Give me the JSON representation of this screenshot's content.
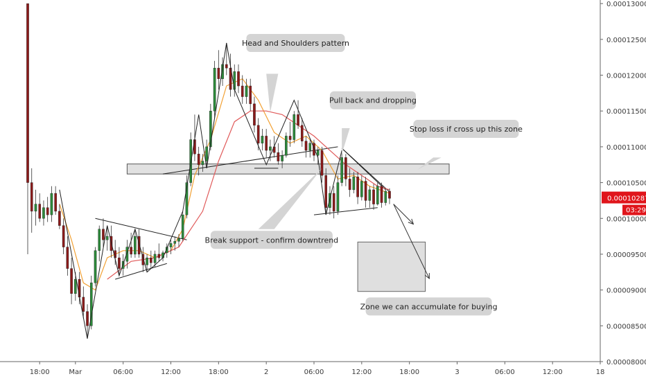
{
  "chart_data": {
    "type": "candlestick",
    "ylim": [
      8e-05,
      0.0001305
    ],
    "xlim": [
      -2,
      144
    ],
    "x_ticks": [
      {
        "label": "18:00",
        "x": 3
      },
      {
        "label": "Mar",
        "x": 12
      },
      {
        "label": "06:00",
        "x": 24
      },
      {
        "label": "12:00",
        "x": 36
      },
      {
        "label": "18:00",
        "x": 48
      },
      {
        "label": "2",
        "x": 60
      },
      {
        "label": "06:00",
        "x": 72
      },
      {
        "label": "12:00",
        "x": 84
      },
      {
        "label": "18:00",
        "x": 96
      },
      {
        "label": "3",
        "x": 108
      },
      {
        "label": "06:00",
        "x": 120
      },
      {
        "label": "12:00",
        "x": 132
      },
      {
        "label": "18",
        "x": 144
      }
    ],
    "y_ticks": [
      "0.00013000",
      "0.00012500",
      "0.00012000",
      "0.00011500",
      "0.00011000",
      "0.00010500",
      "0.00010000",
      "0.00009500",
      "0.00009000",
      "0.00008500",
      "0.00008000"
    ],
    "y_tick_values": [
      0.00013,
      0.000125,
      0.00012,
      0.000115,
      0.00011,
      0.000105,
      0.0001,
      9.5e-05,
      9e-05,
      8.5e-05,
      8e-05
    ],
    "candles": [
      [
        0,
        0.00013,
        0.00013,
        9.5e-05,
        0.000105
      ],
      [
        1,
        0.000105,
        0.000107,
        9.8e-05,
        0.000101
      ],
      [
        2,
        0.000101,
        0.000104,
        9.9e-05,
        0.000102
      ],
      [
        3,
        0.000102,
        0.0001035,
        9.95e-05,
        0.0001
      ],
      [
        4,
        0.0001,
        0.0001025,
        9.9e-05,
        0.0001015
      ],
      [
        5,
        0.0001015,
        0.000103,
        9.95e-05,
        0.0001005
      ],
      [
        6,
        0.0001005,
        0.0001045,
        9.95e-05,
        0.0001035
      ],
      [
        7,
        0.0001035,
        0.0001045,
        0.0001005,
        0.000101
      ],
      [
        8,
        0.000101,
        0.000102,
        9.85e-05,
        9.9e-05
      ],
      [
        9,
        9.9e-05,
        0.0001,
        9.5e-05,
        9.6e-05
      ],
      [
        10,
        9.6e-05,
        9.75e-05,
        9.2e-05,
        9.3e-05
      ],
      [
        11,
        9.3e-05,
        9.45e-05,
        8.8e-05,
        8.95e-05
      ],
      [
        12,
        8.95e-05,
        9.25e-05,
        8.85e-05,
        9.15e-05
      ],
      [
        13,
        9.15e-05,
        9.25e-05,
        8.8e-05,
        8.9e-05
      ],
      [
        14,
        8.9e-05,
        9.05e-05,
        8.6e-05,
        8.7e-05
      ],
      [
        15,
        8.7e-05,
        8.8e-05,
        8.32e-05,
        8.5e-05
      ],
      [
        16,
        8.5e-05,
        9.2e-05,
        8.45e-05,
        9.1e-05
      ],
      [
        17,
        9.1e-05,
        9.6e-05,
        9.05e-05,
        9.55e-05
      ],
      [
        18,
        9.55e-05,
        9.9e-05,
        9.4e-05,
        9.85e-05
      ],
      [
        19,
        9.85e-05,
        0.0001,
        9.6e-05,
        9.7e-05
      ],
      [
        20,
        9.7e-05,
        9.9e-05,
        9.55e-05,
        9.75e-05
      ],
      [
        21,
        9.75e-05,
        9.9e-05,
        9.45e-05,
        9.55e-05
      ],
      [
        22,
        9.55e-05,
        9.7e-05,
        9.35e-05,
        9.45e-05
      ],
      [
        23,
        9.45e-05,
        9.6e-05,
        9.2e-05,
        9.3e-05
      ],
      [
        24,
        9.3e-05,
        9.5e-05,
        9.2e-05,
        9.4e-05
      ],
      [
        25,
        9.4e-05,
        9.7e-05,
        9.3e-05,
        9.6e-05
      ],
      [
        26,
        9.6e-05,
        9.8e-05,
        9.45e-05,
        9.5e-05
      ],
      [
        27,
        9.5e-05,
        9.85e-05,
        9.45e-05,
        9.75e-05
      ],
      [
        28,
        9.75e-05,
        9.85e-05,
        9.45e-05,
        9.5e-05
      ],
      [
        29,
        9.5e-05,
        9.6e-05,
        9.25e-05,
        9.35e-05
      ],
      [
        30,
        9.35e-05,
        9.5e-05,
        9.25e-05,
        9.45e-05
      ],
      [
        31,
        9.45e-05,
        9.55e-05,
        9.3e-05,
        9.38e-05
      ],
      [
        32,
        9.38e-05,
        9.55e-05,
        9.32e-05,
        9.5e-05
      ],
      [
        33,
        9.5e-05,
        9.65e-05,
        9.4e-05,
        9.45e-05
      ],
      [
        34,
        9.45e-05,
        9.55e-05,
        9.4e-05,
        9.52e-05
      ],
      [
        35,
        9.52e-05,
        9.65e-05,
        9.45e-05,
        9.6e-05
      ],
      [
        36,
        9.6e-05,
        9.7e-05,
        9.5e-05,
        9.65e-05
      ],
      [
        37,
        9.65e-05,
        9.75e-05,
        9.55e-05,
        9.68e-05
      ],
      [
        38,
        9.68e-05,
        9.78e-05,
        9.6e-05,
        9.72e-05
      ],
      [
        39,
        9.72e-05,
        0.000101,
        9.68e-05,
        0.0001005
      ],
      [
        40,
        0.0001005,
        0.000106,
        0.0001,
        0.000105
      ],
      [
        41,
        0.000105,
        0.000112,
        0.0001045,
        0.000111
      ],
      [
        42,
        0.000111,
        0.0001145,
        0.000108,
        0.000109
      ],
      [
        43,
        0.000109,
        0.00011,
        0.000106,
        0.0001075
      ],
      [
        44,
        0.0001075,
        0.000109,
        0.0001065,
        0.000108
      ],
      [
        45,
        0.000108,
        0.000111,
        0.0001075,
        0.00011
      ],
      [
        46,
        0.00011,
        0.000116,
        0.0001095,
        0.000115
      ],
      [
        47,
        0.000115,
        0.000122,
        0.000114,
        0.000121
      ],
      [
        48,
        0.000121,
        0.0001235,
        0.000118,
        0.0001195
      ],
      [
        49,
        0.0001195,
        0.0001225,
        0.0001185,
        0.0001215
      ],
      [
        50,
        0.0001215,
        0.0001245,
        0.00012,
        0.000121
      ],
      [
        51,
        0.000121,
        0.000123,
        0.000117,
        0.000118
      ],
      [
        52,
        0.000118,
        0.0001215,
        0.000117,
        0.0001205
      ],
      [
        53,
        0.0001205,
        0.0001215,
        0.0001175,
        0.0001185
      ],
      [
        54,
        0.0001185,
        0.00012,
        0.000116,
        0.000117
      ],
      [
        55,
        0.000117,
        0.0001195,
        0.000116,
        0.0001185
      ],
      [
        56,
        0.0001185,
        0.0001195,
        0.000115,
        0.000116
      ],
      [
        57,
        0.000116,
        0.000117,
        0.000112,
        0.000113
      ],
      [
        58,
        0.000113,
        0.000114,
        0.0001095,
        0.0001105
      ],
      [
        59,
        0.0001105,
        0.0001125,
        0.0001095,
        0.0001115
      ],
      [
        60,
        0.0001115,
        0.0001125,
        0.0001085,
        0.0001095
      ],
      [
        61,
        0.0001095,
        0.000111,
        0.000108,
        0.00011
      ],
      [
        62,
        0.00011,
        0.0001115,
        0.0001085,
        0.0001092
      ],
      [
        63,
        0.0001092,
        0.0001105,
        0.0001075,
        0.000108
      ],
      [
        64,
        0.000108,
        0.0001095,
        0.000107,
        0.0001088
      ],
      [
        65,
        0.0001088,
        0.000112,
        0.0001085,
        0.0001115
      ],
      [
        66,
        0.0001115,
        0.0001135,
        0.00011,
        0.000111
      ],
      [
        67,
        0.000111,
        0.000115,
        0.0001105,
        0.0001145
      ],
      [
        68,
        0.0001145,
        0.0001165,
        0.0001125,
        0.000113
      ],
      [
        69,
        0.000113,
        0.000114,
        0.00011,
        0.0001108
      ],
      [
        70,
        0.0001108,
        0.0001115,
        0.0001085,
        0.0001095
      ],
      [
        71,
        0.0001095,
        0.000111,
        0.0001085,
        0.0001105
      ],
      [
        72,
        0.0001105,
        0.000111,
        0.000108,
        0.0001088
      ],
      [
        73,
        0.0001088,
        0.00011,
        0.0001075,
        0.0001095
      ],
      [
        74,
        0.0001095,
        0.00011,
        0.000105,
        0.000106
      ],
      [
        75,
        0.000106,
        0.000107,
        0.0001005,
        0.0001015
      ],
      [
        76,
        0.0001015,
        0.0001045,
        0.0001005,
        0.0001035
      ],
      [
        77,
        0.0001035,
        0.0001045,
        0.0001,
        0.000101
      ],
      [
        78,
        0.000101,
        0.000106,
        0.0001005,
        0.000105
      ],
      [
        79,
        0.000105,
        0.0001095,
        0.0001045,
        0.0001085
      ],
      [
        80,
        0.0001085,
        0.000109,
        0.0001045,
        0.0001055
      ],
      [
        81,
        0.0001055,
        0.000107,
        0.000103,
        0.000104
      ],
      [
        82,
        0.000104,
        0.0001065,
        0.0001035,
        0.0001058
      ],
      [
        83,
        0.0001058,
        0.0001065,
        0.000102,
        0.000103
      ],
      [
        84,
        0.000103,
        0.000106,
        0.0001025,
        0.0001052
      ],
      [
        85,
        0.0001052,
        0.0001058,
        0.0001015,
        0.0001025
      ],
      [
        86,
        0.0001025,
        0.0001045,
        0.0001015,
        0.000104
      ],
      [
        87,
        0.000104,
        0.0001048,
        0.0001012,
        0.000102
      ],
      [
        88,
        0.000102,
        0.000105,
        0.0001018,
        0.0001045
      ],
      [
        89,
        0.0001045,
        0.000105,
        0.0001015,
        0.0001022
      ],
      [
        90,
        0.0001022,
        0.0001042,
        0.0001018,
        0.0001038
      ],
      [
        91,
        0.0001038,
        0.0001042,
        0.000102,
        0.0001028
      ]
    ],
    "series": [
      {
        "name": "",
        "color": "#f2a134",
        "points": [
          [
            8,
            0.000102
          ],
          [
            11,
            9.7e-05
          ],
          [
            14,
            9.1e-05
          ],
          [
            17,
            9e-05
          ],
          [
            20,
            9.45e-05
          ],
          [
            24,
            9.55e-05
          ],
          [
            28,
            9.55e-05
          ],
          [
            32,
            9.45e-05
          ],
          [
            36,
            9.55e-05
          ],
          [
            39,
            9.85e-05
          ],
          [
            42,
            0.000106
          ],
          [
            46,
            0.000111
          ],
          [
            50,
            0.0001185
          ],
          [
            54,
            0.0001195
          ],
          [
            58,
            0.0001165
          ],
          [
            62,
            0.000112
          ],
          [
            66,
            0.0001105
          ],
          [
            70,
            0.0001115
          ],
          [
            74,
            0.0001095
          ],
          [
            78,
            0.0001055
          ],
          [
            82,
            0.000106
          ],
          [
            86,
            0.0001045
          ],
          [
            91,
            0.0001035
          ]
        ]
      },
      {
        "name": "",
        "color": "#e05a5a",
        "points": [
          [
            20,
            9.15e-05
          ],
          [
            26,
            9.4e-05
          ],
          [
            32,
            9.45e-05
          ],
          [
            38,
            9.6e-05
          ],
          [
            44,
            0.000101
          ],
          [
            48,
            0.000108
          ],
          [
            52,
            0.0001135
          ],
          [
            56,
            0.000115
          ],
          [
            60,
            0.000115
          ],
          [
            64,
            0.0001145
          ],
          [
            68,
            0.000113
          ],
          [
            72,
            0.0001115
          ],
          [
            76,
            0.0001095
          ],
          [
            80,
            0.0001075
          ],
          [
            84,
            0.000106
          ],
          [
            88,
            0.0001045
          ],
          [
            91,
            0.000104
          ]
        ]
      }
    ],
    "last_price": "0.00010287",
    "countdown": "03:29",
    "support_zone": {
      "x0": 25,
      "x1": 106,
      "y0": 0.0001062,
      "y1": 0.0001076
    },
    "target_zone": {
      "x0": 83,
      "x1": 100,
      "y0": 8.98e-05,
      "y1": 9.67e-05
    },
    "trendlines": [
      {
        "points": [
          [
            17,
            0.0001
          ],
          [
            40,
            9.7e-05
          ]
        ]
      },
      {
        "points": [
          [
            22,
            9.15e-05
          ],
          [
            35,
            9.37e-05
          ]
        ]
      },
      {
        "points": [
          [
            34,
            0.0001062
          ],
          [
            78,
            0.00011
          ]
        ]
      },
      {
        "points": [
          [
            57,
            0.000107
          ],
          [
            63,
            0.000107
          ]
        ]
      },
      {
        "points": [
          [
            72,
            0.0001005
          ],
          [
            88,
            0.0001015
          ]
        ]
      },
      {
        "points": [
          [
            79,
            0.0001098
          ],
          [
            90,
            0.000104
          ]
        ]
      },
      {
        "points": [
          [
            -0.5,
            8.3e-05
          ]
        ]
      }
    ],
    "pattern_lines": [
      {
        "points": [
          [
            8,
            0.000104
          ],
          [
            15,
            8.32e-05
          ],
          [
            20,
            9.9e-05
          ],
          [
            23,
            9.2e-05
          ],
          [
            27,
            9.85e-05
          ],
          [
            30,
            9.25e-05
          ],
          [
            34,
            9.45e-05
          ],
          [
            39,
            0.000101
          ],
          [
            43,
            0.0001145
          ],
          [
            45,
            0.000107
          ],
          [
            50,
            0.0001245
          ],
          [
            52,
            0.000118
          ],
          [
            60,
            0.0001075
          ],
          [
            67,
            0.0001165
          ],
          [
            73,
            0.0001085
          ],
          [
            75,
            0.0001005
          ],
          [
            79,
            0.0001095
          ]
        ]
      }
    ],
    "arrows": [
      {
        "from": [
          92,
          0.000102
        ],
        "to": [
          97,
          9.92e-05
        ]
      },
      {
        "from": [
          92,
          0.000102
        ],
        "to": [
          101,
          9.16e-05
        ]
      }
    ],
    "annotations": [
      {
        "text": "Head and Shoulders pattern",
        "x": 55,
        "y": 0.0001245,
        "w": 142,
        "ptr": [
          [
            60,
            0.0001202
          ],
          [
            61,
            0.0001148
          ],
          [
            63,
            0.0001202
          ]
        ]
      },
      {
        "text": "Pull back and dropping",
        "x": 76,
        "y": 0.0001165,
        "w": 124,
        "ptr": [
          [
            79,
            0.0001126
          ],
          [
            79,
            0.000109
          ],
          [
            81,
            0.0001126
          ]
        ]
      },
      {
        "text": "Stop loss if cross up this zone",
        "x": 97,
        "y": 0.0001125,
        "w": 152,
        "ptr": [
          [
            102,
            0.0001085
          ],
          [
            98,
            0.0001068
          ],
          [
            104,
            0.0001085
          ]
        ]
      },
      {
        "text": "Break support - confirm downtrend",
        "x": 46,
        "y": 9.7e-05,
        "w": 176,
        "ptr": [
          [
            58,
            9.85e-05
          ],
          [
            74,
            0.000107
          ],
          [
            62,
            9.85e-05
          ]
        ]
      },
      {
        "text": "Zone we can accumulate for buying",
        "x": 85,
        "y": 8.77e-05,
        "w": 182,
        "ptr": [
          [
            91,
            8.83e-05
          ],
          [
            91,
            8.83e-05
          ],
          [
            91,
            8.83e-05
          ]
        ]
      }
    ]
  }
}
